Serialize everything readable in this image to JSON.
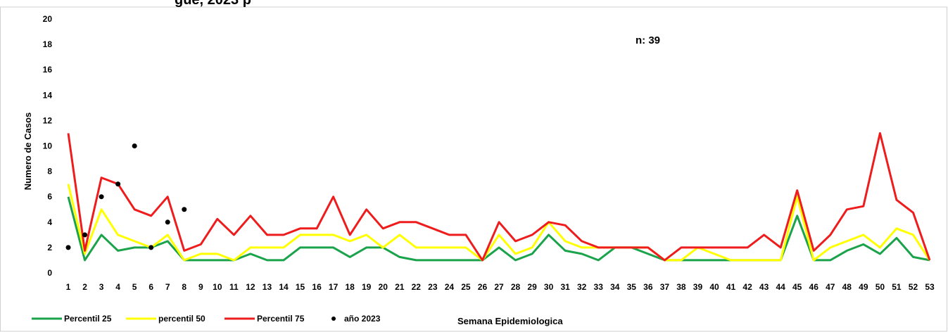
{
  "chart_data": {
    "type": "line",
    "title": "gue, 2023 p",
    "xlabel": "Semana Epidemiologica",
    "ylabel": "Numero de Casos",
    "annotation": "n: 39",
    "ylim": [
      0,
      20
    ],
    "yticks": [
      0,
      2,
      4,
      6,
      8,
      10,
      12,
      14,
      16,
      18,
      20
    ],
    "grid": false,
    "legend_position": "bottom-left",
    "categories": [
      "1",
      "2",
      "3",
      "4",
      "5",
      "6",
      "7",
      "8",
      "9",
      "10",
      "11",
      "12",
      "13",
      "14",
      "15",
      "16",
      "17",
      "18",
      "19",
      "20",
      "21",
      "22",
      "23",
      "24",
      "25",
      "26",
      "27",
      "28",
      "29",
      "30",
      "31",
      "32",
      "33",
      "34",
      "35",
      "36",
      "37",
      "38",
      "39",
      "40",
      "41",
      "42",
      "43",
      "44",
      "45",
      "46",
      "47",
      "48",
      "49",
      "50",
      "51",
      "52",
      "53"
    ],
    "series": [
      {
        "name": "Percentil 25",
        "kind": "line",
        "color": "#1aa34a",
        "values": [
          6,
          1,
          3,
          1.75,
          2,
          2,
          2.5,
          1,
          1,
          1,
          1,
          1.5,
          1,
          1,
          2,
          2,
          2,
          1.25,
          2,
          2,
          1.25,
          1,
          1,
          1,
          1,
          1,
          2,
          1,
          1.5,
          3,
          1.75,
          1.5,
          1,
          2,
          2,
          1.5,
          1,
          1,
          1,
          1,
          1,
          1,
          1,
          1,
          4.5,
          1,
          1,
          1.75,
          2.25,
          1.5,
          2.75,
          1.25,
          1
        ]
      },
      {
        "name": "percentil 50",
        "kind": "line",
        "color": "#ffff00",
        "values": [
          7,
          1.5,
          5,
          3,
          2.5,
          2,
          3,
          1,
          1.5,
          1.5,
          1,
          2,
          2,
          2,
          3,
          3,
          3,
          2.5,
          3,
          2,
          3,
          2,
          2,
          2,
          2,
          1,
          3,
          1.5,
          2,
          4,
          2.5,
          2,
          2,
          2,
          2,
          2,
          1,
          1,
          2,
          1.5,
          1,
          1,
          1,
          1,
          6,
          1,
          2,
          2.5,
          3,
          2,
          3.5,
          3,
          1
        ]
      },
      {
        "name": "Percentil 75",
        "kind": "line",
        "color": "#ee1c1c",
        "values": [
          11,
          1.75,
          7.5,
          7,
          5,
          4.5,
          6,
          1.75,
          2.25,
          4.25,
          3,
          4.5,
          3,
          3,
          3.5,
          3.5,
          6,
          3,
          5,
          3.5,
          4,
          4,
          3.5,
          3,
          3,
          1,
          4,
          2.5,
          3,
          4,
          3.75,
          2.5,
          2,
          2,
          2,
          2,
          1,
          2,
          2,
          2,
          2,
          2,
          3,
          2,
          6.5,
          1.75,
          3,
          5,
          5.25,
          11,
          5.75,
          4.75,
          1
        ]
      },
      {
        "name": "año 2023",
        "kind": "scatter",
        "color": "#000000",
        "x": [
          "1",
          "2",
          "3",
          "4",
          "5",
          "6",
          "7",
          "8"
        ],
        "values": [
          2,
          3,
          6,
          7,
          10,
          2,
          4,
          5
        ]
      }
    ]
  }
}
